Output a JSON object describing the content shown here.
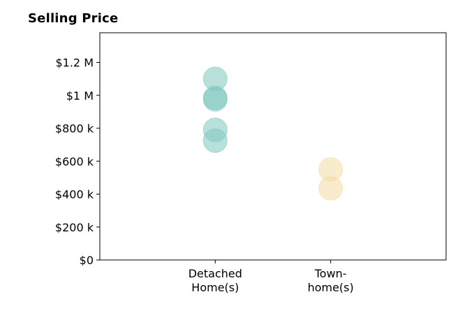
{
  "chart_data": {
    "type": "scatter",
    "title": "Selling Price",
    "xlabel": "",
    "ylabel": "",
    "categories": [
      "Detached\nHome(s)",
      "Town-\nhome(s)"
    ],
    "ylim": [
      0,
      1380000
    ],
    "yticks": [
      {
        "value": 0,
        "label": "$0"
      },
      {
        "value": 200000,
        "label": "$200 k"
      },
      {
        "value": 400000,
        "label": "$400 k"
      },
      {
        "value": 600000,
        "label": "$600 k"
      },
      {
        "value": 800000,
        "label": "$800 k"
      },
      {
        "value": 1000000,
        "label": "$1 M"
      },
      {
        "value": 1200000,
        "label": "$1.2 M"
      }
    ],
    "series": [
      {
        "category": "Detached\nHome(s)",
        "color": "#7fc8c0",
        "values": [
          1100000,
          985000,
          975000,
          790000,
          725000
        ]
      },
      {
        "category": "Town-\nhome(s)",
        "color": "#f3dca4",
        "values": [
          550000,
          435000
        ]
      }
    ],
    "grid": false
  }
}
